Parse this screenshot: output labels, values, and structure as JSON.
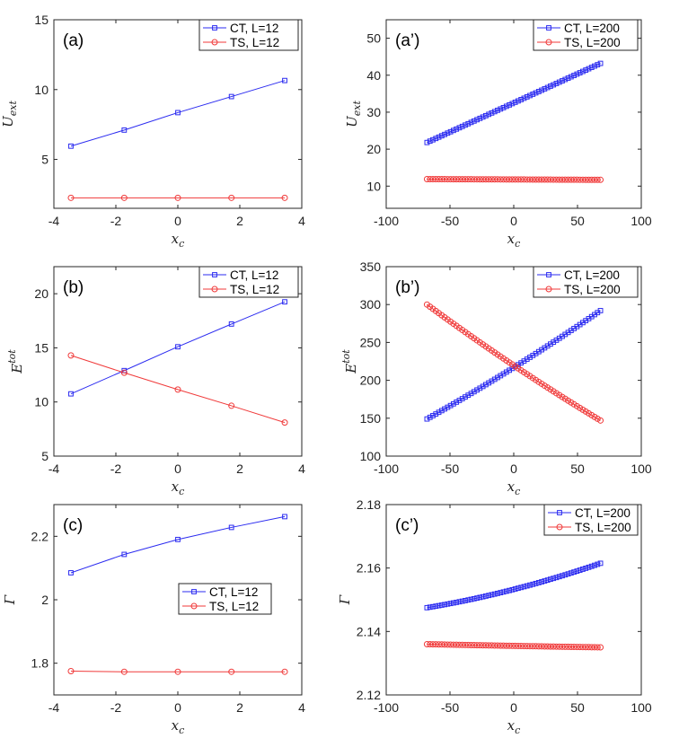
{
  "colors": {
    "ct": "#2b2bf0",
    "ts": "#f03a3a",
    "axis": "#262626"
  },
  "chart_data": [
    {
      "id": "a",
      "type": "line",
      "panel_label": "(a)",
      "xlabel": "x_c",
      "ylabel": "U_ext",
      "ylabel_main": "U",
      "ylabel_sub": "ext",
      "xlim": [
        -4,
        4
      ],
      "ylim": [
        1.5,
        15
      ],
      "xticks": [
        -4,
        -2,
        0,
        2,
        4
      ],
      "yticks": [
        5,
        10,
        15
      ],
      "xtick_labels": [
        "-4",
        "-2",
        "0",
        "2",
        "4"
      ],
      "ytick_labels": [
        "5",
        "10",
        "15"
      ],
      "legend_position": "top-right",
      "series": [
        {
          "name": "CT, L=12",
          "marker": "square",
          "x": [
            -3.45,
            -1.73,
            0,
            1.73,
            3.45
          ],
          "values": [
            5.95,
            7.1,
            8.35,
            9.5,
            10.65
          ]
        },
        {
          "name": "TS, L=12",
          "marker": "circle",
          "x": [
            -3.45,
            -1.73,
            0,
            1.73,
            3.45
          ],
          "values": [
            2.25,
            2.25,
            2.25,
            2.25,
            2.25
          ]
        }
      ]
    },
    {
      "id": "a2",
      "type": "line",
      "panel_label": "(a’)",
      "xlabel": "x_c",
      "ylabel": "U_ext",
      "ylabel_main": "U",
      "ylabel_sub": "ext",
      "xlim": [
        -100,
        100
      ],
      "ylim": [
        4,
        55
      ],
      "xticks": [
        -100,
        -50,
        0,
        50,
        100
      ],
      "yticks": [
        10,
        20,
        30,
        40,
        50
      ],
      "xtick_labels": [
        "-100",
        "-50",
        "0",
        "50",
        "100"
      ],
      "ytick_labels": [
        "10",
        "20",
        "30",
        "40",
        "50"
      ],
      "legend_position": "top-right",
      "series": [
        {
          "name": "CT, L=200",
          "marker": "square",
          "dense": true,
          "x": [
            -68,
            68
          ],
          "values": [
            21.8,
            43.2
          ],
          "curvature": 0
        },
        {
          "name": "TS, L=200",
          "marker": "circle",
          "dense": true,
          "x": [
            -68,
            68
          ],
          "values": [
            11.9,
            11.7
          ],
          "curvature": 0
        }
      ]
    },
    {
      "id": "b",
      "type": "line",
      "panel_label": "(b)",
      "xlabel": "x_c",
      "ylabel": "E^tot",
      "ylabel_main": "E",
      "ylabel_sup": "tot",
      "xlim": [
        -4,
        4
      ],
      "ylim": [
        5,
        22.5
      ],
      "xticks": [
        -4,
        -2,
        0,
        2,
        4
      ],
      "yticks": [
        5,
        10,
        15,
        20
      ],
      "xtick_labels": [
        "-4",
        "-2",
        "0",
        "2",
        "4"
      ],
      "ytick_labels": [
        "5",
        "10",
        "15",
        "20"
      ],
      "legend_position": "top-right",
      "series": [
        {
          "name": "CT, L=12",
          "marker": "square",
          "x": [
            -3.45,
            -1.73,
            0,
            1.73,
            3.45
          ],
          "values": [
            10.75,
            12.9,
            15.1,
            17.2,
            19.25
          ]
        },
        {
          "name": "TS, L=12",
          "marker": "circle",
          "x": [
            -3.45,
            -1.73,
            0,
            1.73,
            3.45
          ],
          "values": [
            14.3,
            12.7,
            11.15,
            9.65,
            8.1
          ]
        }
      ]
    },
    {
      "id": "b2",
      "type": "line",
      "panel_label": "(b’)",
      "xlabel": "x_c",
      "ylabel": "E^tot",
      "ylabel_main": "E",
      "ylabel_sup": "tot",
      "xlim": [
        -100,
        100
      ],
      "ylim": [
        100,
        350
      ],
      "xticks": [
        -100,
        -50,
        0,
        50,
        100
      ],
      "yticks": [
        100,
        150,
        200,
        250,
        300,
        350
      ],
      "xtick_labels": [
        "-100",
        "-50",
        "0",
        "50",
        "100"
      ],
      "ytick_labels": [
        "100",
        "150",
        "200",
        "250",
        "300",
        "350"
      ],
      "legend_position": "top-right",
      "series": [
        {
          "name": "CT, L=200",
          "marker": "square",
          "dense": true,
          "x": [
            -68,
            68
          ],
          "values": [
            149,
            292
          ],
          "curvature": -0.1
        },
        {
          "name": "TS, L=200",
          "marker": "circle",
          "dense": true,
          "x": [
            -68,
            68
          ],
          "values": [
            300,
            147
          ],
          "curvature": 0.1
        }
      ]
    },
    {
      "id": "c",
      "type": "line",
      "panel_label": "(c)",
      "xlabel": "x_c",
      "ylabel": "Γ",
      "xlim": [
        -4,
        4
      ],
      "ylim": [
        1.7,
        2.3
      ],
      "xticks": [
        -4,
        -2,
        0,
        2,
        4
      ],
      "yticks": [
        1.8,
        2.0,
        2.2
      ],
      "xtick_labels": [
        "-4",
        "-2",
        "0",
        "2",
        "4"
      ],
      "ytick_labels": [
        "1.8",
        "2",
        "2.2"
      ],
      "legend_position": "center-right",
      "series": [
        {
          "name": "CT, L=12",
          "marker": "square",
          "x": [
            -3.45,
            -1.73,
            0,
            1.73,
            3.45
          ],
          "values": [
            2.085,
            2.143,
            2.19,
            2.228,
            2.262
          ]
        },
        {
          "name": "TS, L=12",
          "marker": "circle",
          "x": [
            -3.45,
            -1.73,
            0,
            1.73,
            3.45
          ],
          "values": [
            1.775,
            1.773,
            1.773,
            1.773,
            1.773
          ]
        }
      ]
    },
    {
      "id": "c2",
      "type": "line",
      "panel_label": "(c’)",
      "xlabel": "x_c",
      "ylabel": "Γ",
      "xlim": [
        -100,
        100
      ],
      "ylim": [
        2.12,
        2.18
      ],
      "xticks": [
        -100,
        -50,
        0,
        50,
        100
      ],
      "yticks": [
        2.12,
        2.14,
        2.16,
        2.18
      ],
      "xtick_labels": [
        "-100",
        "-50",
        "0",
        "50",
        "100"
      ],
      "ytick_labels": [
        "2.12",
        "2.14",
        "2.16",
        "2.18"
      ],
      "legend_position": "top-right",
      "series": [
        {
          "name": "CT, L=200",
          "marker": "square",
          "dense": true,
          "x": [
            -68,
            68
          ],
          "values": [
            2.1475,
            2.1615
          ],
          "curvature": -0.35
        },
        {
          "name": "TS, L=200",
          "marker": "circle",
          "dense": true,
          "x": [
            -68,
            68
          ],
          "values": [
            2.136,
            2.135
          ],
          "curvature": 0.15
        }
      ]
    }
  ]
}
